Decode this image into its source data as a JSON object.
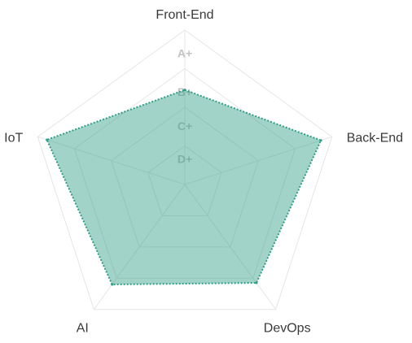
{
  "chart_data": {
    "type": "radar",
    "axes": [
      "Front-End",
      "Back-End",
      "DevOps",
      "AI",
      "IoT"
    ],
    "scale_levels": [
      "D+",
      "C+",
      "B+",
      "A+"
    ],
    "range": [
      0,
      4
    ],
    "series": [
      {
        "values": [
          2.45,
          3.7,
          3.15,
          3.2,
          3.75
        ],
        "color": "#2e9e86"
      }
    ],
    "grid": true,
    "legend": "none"
  }
}
